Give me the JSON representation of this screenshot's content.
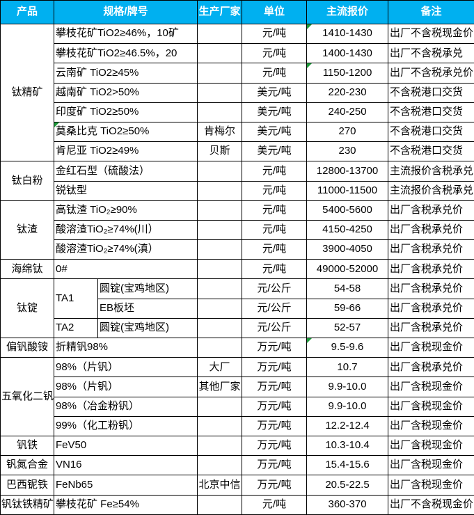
{
  "colors": {
    "header_bg": "#00B0F0",
    "header_text": "#FFFFFF",
    "grid": "#000000",
    "marker_green": "#1E9B3B"
  },
  "table": {
    "columns": [
      "产品",
      "规格/牌号",
      "生产厂家",
      "单位",
      "主流报价",
      "备注"
    ],
    "groups": [
      {
        "product": "钛精矿",
        "rows": [
          {
            "spec": "攀枝花矿TiO2≥46%，10矿",
            "mfr": "",
            "unit": "元/吨",
            "price": "1410-1430",
            "note": "出厂不含税现金价",
            "flags": [
              "price"
            ]
          },
          {
            "spec": "攀枝花矿TiO2≥46.5%，20",
            "mfr": "",
            "unit": "元/吨",
            "price": "1400-1430",
            "note": "出厂不含税承兑"
          },
          {
            "spec": "云南矿 TiO2≥45%",
            "mfr": "",
            "unit": "元/吨",
            "price": "1150-1200",
            "note": "出厂不含税承兑价",
            "flags": [
              "price"
            ]
          },
          {
            "spec": "越南矿 TiO2>50%",
            "mfr": "",
            "unit": "美元/吨",
            "price": "220-230",
            "note": "不含税港口交货"
          },
          {
            "spec": "印度矿 TiO2≥50%",
            "mfr": "",
            "unit": "美元/吨",
            "price": "240-250",
            "note": "不含税港口交货"
          },
          {
            "spec": "莫桑比克 TiO2≥50%",
            "mfr": "肯梅尔",
            "unit": "美元/吨",
            "price": "270",
            "note": "不含税港口交货",
            "flags": [
              "spec"
            ]
          },
          {
            "spec": "肯尼亚 TiO2≥49%",
            "mfr": "贝斯",
            "unit": "美元/吨",
            "price": "230",
            "note": "不含税港口交货"
          }
        ]
      },
      {
        "product": "钛白粉",
        "rows": [
          {
            "spec": "金红石型（硫酸法）",
            "mfr": "",
            "unit": "元/吨",
            "price": "12800-13700",
            "note": "主流报价含税承兑"
          },
          {
            "spec": "锐钛型",
            "mfr": "",
            "unit": "元/吨",
            "price": "11000-11500",
            "note": "主流报价含税承兑"
          }
        ]
      },
      {
        "product": "钛渣",
        "rows": [
          {
            "spec": "高钛渣 TiO₂≥90%",
            "mfr": "",
            "unit": "元/吨",
            "price": "5400-5600",
            "note": "出厂含税承兑价"
          },
          {
            "spec": "酸溶渣TiO₂≥74%(川）",
            "mfr": "",
            "unit": "元/吨",
            "price": "4150-4250",
            "note": "出厂含税承兑价"
          },
          {
            "spec": "酸溶渣TiO₂≥74%(滇）",
            "mfr": "",
            "unit": "元/吨",
            "price": "3900-4050",
            "note": "出厂含税承兑价"
          }
        ]
      },
      {
        "product": "海绵钛",
        "rows": [
          {
            "spec": "0#",
            "mfr": "",
            "unit": "元/吨",
            "price": "49000-52000",
            "note": "出厂含税承兑价"
          }
        ]
      },
      {
        "product": "钛锭",
        "rows": [
          {
            "grade": "TA1",
            "gradeSpan": 2,
            "spec": "圆锭(宝鸡地区)",
            "mfr": "",
            "unit": "元/公斤",
            "price": "54-58",
            "note": "出厂含税承兑价"
          },
          {
            "grade": null,
            "spec": "EB板坯",
            "mfr": "",
            "unit": "元/公斤",
            "price": "59-66",
            "note": "出厂含税承兑价"
          },
          {
            "grade": "TA2",
            "gradeSpan": 1,
            "spec": "圆锭(宝鸡地区)",
            "mfr": "",
            "unit": "元/公斤",
            "price": "52-57",
            "note": "出厂含税承兑价"
          }
        ]
      },
      {
        "product": "偏钒酸铵",
        "rows": [
          {
            "spec": "折精钒98%",
            "mfr": "",
            "unit": "万元/吨",
            "price": "9.5-9.6",
            "note": "出厂含税现金价",
            "flags": [
              "price"
            ]
          }
        ]
      },
      {
        "product": "五氧化二钒",
        "rows": [
          {
            "spec": "98%（片钒）",
            "mfr": "大厂",
            "unit": "万元/吨",
            "price": "10.7",
            "note": "出厂含税承兑价"
          },
          {
            "spec": "98%（片钒）",
            "mfr": "其他厂家",
            "unit": "万元/吨",
            "price": "9.9-10.0",
            "note": "出厂含税现金价"
          },
          {
            "spec": "98%（冶金粉钒）",
            "mfr": "",
            "unit": "万元/吨",
            "price": "9.9-10.0",
            "note": "出厂含税现金价"
          },
          {
            "spec": "99%（化工粉钒）",
            "mfr": "",
            "unit": "万元/吨",
            "price": "12.2-12.4",
            "note": "出厂含税现金价"
          }
        ]
      },
      {
        "product": "钒铁",
        "rows": [
          {
            "spec": "FeV50",
            "mfr": "",
            "unit": "万元/吨",
            "price": "10.3-10.4",
            "note": "出厂含税现金价"
          }
        ]
      },
      {
        "product": "钒氮合金",
        "rows": [
          {
            "spec": "VN16",
            "mfr": "",
            "unit": "万元/吨",
            "price": "15.4-15.6",
            "note": "出厂含税现金价"
          }
        ]
      },
      {
        "product": "巴西铌铁",
        "rows": [
          {
            "spec": "FeNb65",
            "mfr": "北京中信",
            "unit": "万元/吨",
            "price": "20.5-22.5",
            "note": "出厂含税现金价"
          }
        ]
      },
      {
        "product": "钒钛铁精矿",
        "rows": [
          {
            "spec": "攀枝花矿 Fe≥54%",
            "mfr": "",
            "unit": "元/吨",
            "price": "360-370",
            "note": "出厂不含税现金价"
          }
        ]
      }
    ]
  },
  "chart_data": {
    "type": "table",
    "columns": [
      "产品",
      "规格/牌号",
      "生产厂家",
      "单位",
      "主流报价",
      "备注"
    ],
    "rows": [
      [
        "钛精矿",
        "攀枝花矿TiO2≥46%，10矿",
        "",
        "元/吨",
        "1410-1430",
        "出厂不含税现金价"
      ],
      [
        "钛精矿",
        "攀枝花矿TiO2≥46.5%，20",
        "",
        "元/吨",
        "1400-1430",
        "出厂不含税承兑"
      ],
      [
        "钛精矿",
        "云南矿 TiO2≥45%",
        "",
        "元/吨",
        "1150-1200",
        "出厂不含税承兑价"
      ],
      [
        "钛精矿",
        "越南矿 TiO2>50%",
        "",
        "美元/吨",
        "220-230",
        "不含税港口交货"
      ],
      [
        "钛精矿",
        "印度矿 TiO2≥50%",
        "",
        "美元/吨",
        "240-250",
        "不含税港口交货"
      ],
      [
        "钛精矿",
        "莫桑比克 TiO2≥50%",
        "肯梅尔",
        "美元/吨",
        "270",
        "不含税港口交货"
      ],
      [
        "钛精矿",
        "肯尼亚 TiO2≥49%",
        "贝斯",
        "美元/吨",
        "230",
        "不含税港口交货"
      ],
      [
        "钛白粉",
        "金红石型（硫酸法）",
        "",
        "元/吨",
        "12800-13700",
        "主流报价含税承兑"
      ],
      [
        "钛白粉",
        "锐钛型",
        "",
        "元/吨",
        "11000-11500",
        "主流报价含税承兑"
      ],
      [
        "钛渣",
        "高钛渣 TiO₂≥90%",
        "",
        "元/吨",
        "5400-5600",
        "出厂含税承兑价"
      ],
      [
        "钛渣",
        "酸溶渣TiO₂≥74%(川）",
        "",
        "元/吨",
        "4150-4250",
        "出厂含税承兑价"
      ],
      [
        "钛渣",
        "酸溶渣TiO₂≥74%(滇）",
        "",
        "元/吨",
        "3900-4050",
        "出厂含税承兑价"
      ],
      [
        "海绵钛",
        "0#",
        "",
        "元/吨",
        "49000-52000",
        "出厂含税承兑价"
      ],
      [
        "钛锭",
        "TA1 圆锭(宝鸡地区)",
        "",
        "元/公斤",
        "54-58",
        "出厂含税承兑价"
      ],
      [
        "钛锭",
        "TA1 EB板坯",
        "",
        "元/公斤",
        "59-66",
        "出厂含税承兑价"
      ],
      [
        "钛锭",
        "TA2 圆锭(宝鸡地区)",
        "",
        "元/公斤",
        "52-57",
        "出厂含税承兑价"
      ],
      [
        "偏钒酸铵",
        "折精钒98%",
        "",
        "万元/吨",
        "9.5-9.6",
        "出厂含税现金价"
      ],
      [
        "五氧化二钒",
        "98%（片钒）",
        "大厂",
        "万元/吨",
        "10.7",
        "出厂含税承兑价"
      ],
      [
        "五氧化二钒",
        "98%（片钒）",
        "其他厂家",
        "万元/吨",
        "9.9-10.0",
        "出厂含税现金价"
      ],
      [
        "五氧化二钒",
        "98%（冶金粉钒）",
        "",
        "万元/吨",
        "9.9-10.0",
        "出厂含税现金价"
      ],
      [
        "五氧化二钒",
        "99%（化工粉钒）",
        "",
        "万元/吨",
        "12.2-12.4",
        "出厂含税现金价"
      ],
      [
        "钒铁",
        "FeV50",
        "",
        "万元/吨",
        "10.3-10.4",
        "出厂含税现金价"
      ],
      [
        "钒氮合金",
        "VN16",
        "",
        "万元/吨",
        "15.4-15.6",
        "出厂含税现金价"
      ],
      [
        "巴西铌铁",
        "FeNb65",
        "北京中信",
        "万元/吨",
        "20.5-22.5",
        "出厂含税现金价"
      ],
      [
        "钒钛铁精矿",
        "攀枝花矿 Fe≥54%",
        "",
        "元/吨",
        "360-370",
        "出厂不含税现金价"
      ]
    ]
  }
}
